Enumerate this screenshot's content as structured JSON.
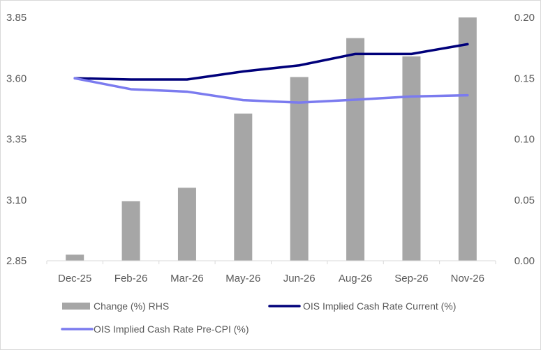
{
  "chart_data": {
    "type": "bar+line",
    "title": "",
    "categories": [
      "Dec-25",
      "Feb-26",
      "Mar-26",
      "May-26",
      "Jun-26",
      "Aug-26",
      "Sep-26",
      "Nov-26"
    ],
    "left_axis": {
      "min": 2.85,
      "max": 3.85,
      "ticks": [
        2.85,
        3.1,
        3.35,
        3.6,
        3.85
      ],
      "tick_labels": [
        "2.85",
        "3.10",
        "3.35",
        "3.60",
        "3.85"
      ]
    },
    "right_axis": {
      "min": 0.0,
      "max": 0.2,
      "ticks": [
        0.0,
        0.05,
        0.1,
        0.15,
        0.2
      ],
      "tick_labels": [
        "0.00",
        "0.05",
        "0.10",
        "0.15",
        "0.20"
      ]
    },
    "series": [
      {
        "name": "Change (%) RHS",
        "type": "bar",
        "axis": "right",
        "color": "#a6a6a6",
        "values": [
          0.005,
          0.049,
          0.06,
          0.121,
          0.151,
          0.183,
          0.168,
          0.2
        ]
      },
      {
        "name": "OIS Implied Cash Rate Current (%)",
        "type": "line",
        "axis": "left",
        "color": "#00007a",
        "values": [
          3.6,
          3.595,
          3.595,
          3.628,
          3.653,
          3.7,
          3.7,
          3.74
        ]
      },
      {
        "name": "OIS Implied Cash Rate Pre-CPI (%)",
        "type": "line",
        "axis": "left",
        "color": "#7b7bef",
        "values": [
          3.6,
          3.555,
          3.545,
          3.51,
          3.5,
          3.512,
          3.525,
          3.53
        ]
      }
    ],
    "legend": [
      "Change (%) RHS",
      "OIS Implied Cash Rate Current (%)",
      "OIS Implied Cash Rate Pre-CPI (%)"
    ],
    "legend_position": "bottom",
    "grid": false
  }
}
